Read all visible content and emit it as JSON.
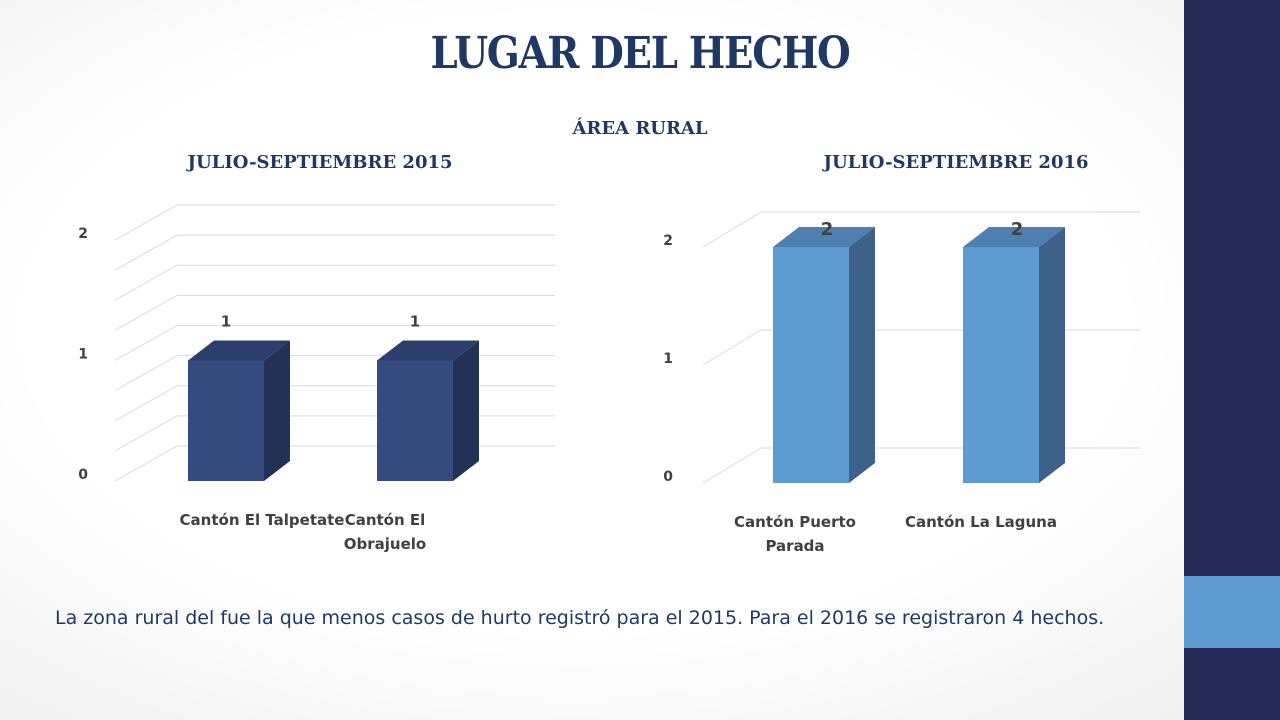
{
  "slide": {
    "title": "LUGAR DEL HECHO",
    "subtitle": "ÁREA RURAL",
    "caption": "La zona rural del fue la que menos casos de hurto registró para el 2015. Para el 2016 se registraron 4 hechos."
  },
  "colors": {
    "sidebar": "#262a57",
    "sidebar_accent": "#5f9bd3",
    "title": "#1f3864"
  },
  "chart_data": [
    {
      "type": "bar",
      "title": "JULIO-SEPTIEMBRE 2015",
      "categories": [
        [
          "Cantón El Talpetate"
        ],
        [
          "Cantón El",
          "Obrajuelo"
        ]
      ],
      "values": [
        1,
        1
      ],
      "data_labels": [
        "1",
        "1"
      ],
      "yticks": [
        "0",
        "1",
        "2"
      ],
      "ylim": [
        0,
        2
      ],
      "minor_gridlines": true,
      "legend": "none",
      "bar_colors": {
        "front": "#354a7e",
        "side": "#243156",
        "top": "#2c3e6c"
      }
    },
    {
      "type": "bar",
      "title": "JULIO-SEPTIEMBRE 2016",
      "categories": [
        [
          "Cantón Puerto",
          "Parada"
        ],
        [
          "Cantón La Laguna"
        ]
      ],
      "values": [
        2,
        2
      ],
      "data_labels": [
        "2",
        "2"
      ],
      "yticks": [
        "0",
        "1",
        "2"
      ],
      "ylim": [
        0,
        2
      ],
      "minor_gridlines": false,
      "legend": "none",
      "bar_colors": {
        "front": "#5f9bd3",
        "side": "#3d6189",
        "top": "#4f7fae"
      }
    }
  ]
}
